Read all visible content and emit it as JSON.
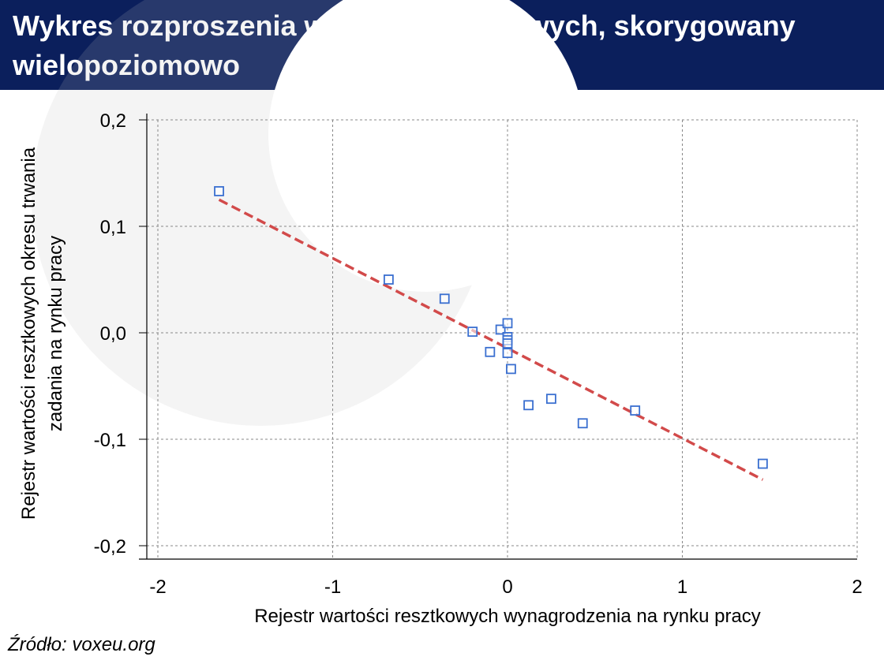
{
  "header": {
    "title": "Wykres rozproszenia wartości resztkowych, skorygowany wielopoziomowo"
  },
  "source": "Źródło: voxeu.org",
  "colors": {
    "header_bg": "#0b1f5c",
    "points": "#3a6fd0",
    "trend": "#d24a4a",
    "grid": "#888888"
  },
  "chart_data": {
    "type": "scatter",
    "title": "Wykres rozproszenia wartości resztkowych, skorygowany wielopoziomowo",
    "xlabel": "Rejestr wartości resztkowych wynagrodzenia na rynku pracy",
    "ylabel_lines": [
      "Rejestr wartości resztkowych okresu trwania",
      "zadania na rynku pracy"
    ],
    "xlim": [
      -2,
      2
    ],
    "ylim": [
      -0.2,
      0.2
    ],
    "x_ticks": [
      -2,
      -1,
      0,
      1,
      2
    ],
    "x_tick_labels": [
      "-2",
      "-1",
      "0",
      "1",
      "2"
    ],
    "y_ticks": [
      0.2,
      0.1,
      0.0,
      -0.1,
      -0.2
    ],
    "y_tick_labels": [
      "0,2",
      "0,1",
      "0,0",
      "-0,1",
      "-0,2"
    ],
    "grid": true,
    "points": [
      {
        "x": -1.65,
        "y": 0.133
      },
      {
        "x": -0.68,
        "y": 0.05
      },
      {
        "x": -0.36,
        "y": 0.032
      },
      {
        "x": -0.2,
        "y": 0.001
      },
      {
        "x": -0.1,
        "y": -0.018
      },
      {
        "x": -0.04,
        "y": 0.003
      },
      {
        "x": 0.0,
        "y": 0.009
      },
      {
        "x": 0.0,
        "y": -0.004
      },
      {
        "x": 0.0,
        "y": -0.007
      },
      {
        "x": 0.0,
        "y": -0.01
      },
      {
        "x": 0.0,
        "y": -0.019
      },
      {
        "x": 0.02,
        "y": -0.034
      },
      {
        "x": 0.12,
        "y": -0.068
      },
      {
        "x": 0.25,
        "y": -0.062
      },
      {
        "x": 0.43,
        "y": -0.085
      },
      {
        "x": 0.73,
        "y": -0.073
      },
      {
        "x": 1.46,
        "y": -0.123
      }
    ],
    "trendline": {
      "x": [
        -1.65,
        1.46
      ],
      "y": [
        0.125,
        -0.138
      ]
    }
  }
}
